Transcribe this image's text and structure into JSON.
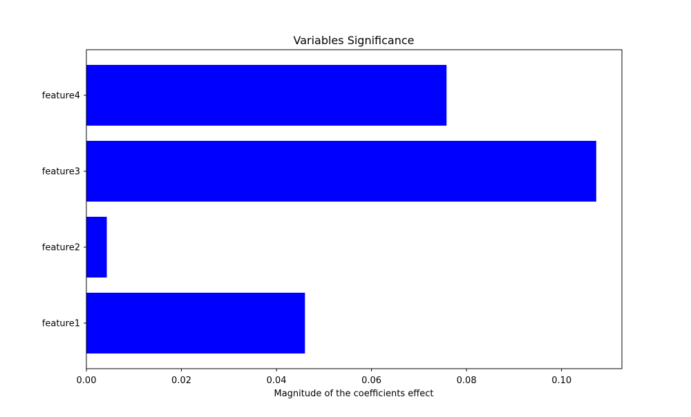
{
  "chart_data": {
    "type": "bar",
    "orientation": "horizontal",
    "title": "Variables Significance",
    "xlabel": "Magnitude of the coefficients effect",
    "ylabel": "",
    "categories": [
      "feature1",
      "feature2",
      "feature3",
      "feature4"
    ],
    "values": [
      0.046,
      0.0043,
      0.1073,
      0.0758
    ],
    "xlim": [
      0,
      0.1127
    ],
    "xticks": [
      0.0,
      0.02,
      0.04,
      0.06,
      0.08,
      0.1
    ],
    "xtick_labels": [
      "0.00",
      "0.02",
      "0.04",
      "0.06",
      "0.08",
      "0.10"
    ],
    "bar_color": "#0000ff",
    "grid": false,
    "legend": "none"
  }
}
